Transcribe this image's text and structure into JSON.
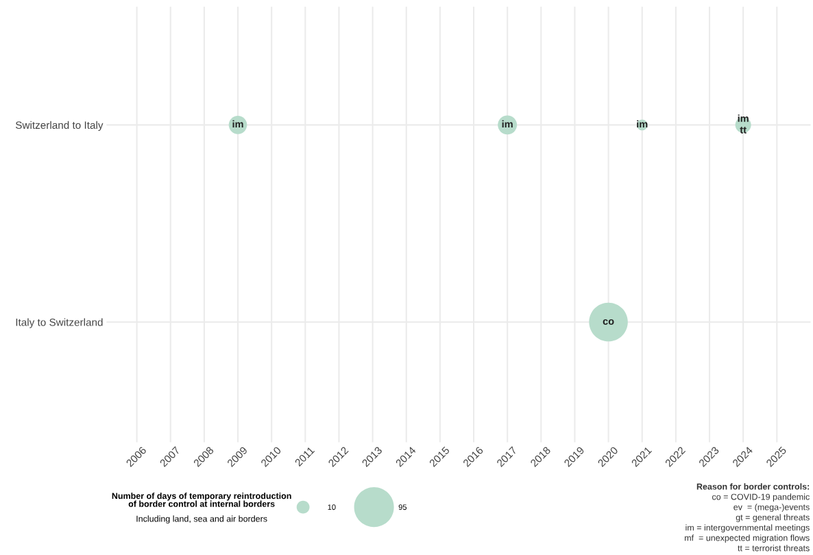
{
  "chart_data": {
    "type": "bubble",
    "orientation": "horizontal",
    "categories": [
      "Switzerland to Italy",
      "Italy to Switzerland"
    ],
    "series": [
      {
        "color": "#b7dccb",
        "values": [
          2009,
          2020
        ],
        "sizes": [
          20,
          90
        ],
        "value_labels": [
          "im",
          "co"
        ]
      },
      {
        "color": "#b7dccb",
        "values": [
          2017,
          null
        ],
        "sizes": [
          22,
          null
        ],
        "value_labels": [
          "im",
          null
        ]
      },
      {
        "color": "#b7dccb",
        "values": [
          2021,
          null
        ],
        "sizes": [
          7,
          null
        ],
        "value_labels": [
          "im",
          null
        ]
      },
      {
        "color": "#b7dccb",
        "values": [
          2024,
          null
        ],
        "sizes": [
          15,
          null
        ],
        "value_labels": [
          "im\ntt",
          null
        ]
      }
    ],
    "size_legend": [
      10,
      95
    ],
    "legend_title": "Number of days of temporary reintroduction\nof border control at internal borders",
    "xlim": [
      2005.1,
      2026.0
    ],
    "xticks": [
      2006,
      2007,
      2008,
      2009,
      2010,
      2011,
      2012,
      2013,
      2014,
      2015,
      2016,
      2017,
      2018,
      2019,
      2020,
      2021,
      2022,
      2023,
      2024,
      2025
    ],
    "grid": true,
    "annotations": [
      "Including land, sea and air borders",
      "Reason for border controls:",
      "co = COVID-19 pandemic",
      "ev  = (mega-)events",
      "gt = general threats",
      "im = intergovernmental meetings",
      "mf  = unexpected migration flows",
      "tt = terrorist threats"
    ]
  }
}
